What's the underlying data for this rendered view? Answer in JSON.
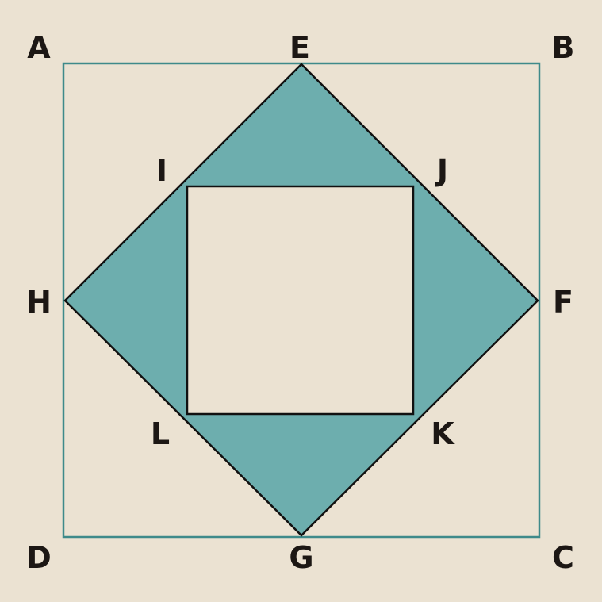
{
  "colors": {
    "background": "#ebe2d2",
    "outer_square_stroke": "#3e8a8a",
    "rhombus_fill": "#6daeae",
    "outline": "#111111",
    "label": "#1c1714"
  },
  "labels": {
    "A": "A",
    "B": "B",
    "C": "C",
    "D": "D",
    "E": "E",
    "F": "F",
    "G": "G",
    "H": "H",
    "I": "I",
    "J": "J",
    "K": "K",
    "L": "L"
  }
}
